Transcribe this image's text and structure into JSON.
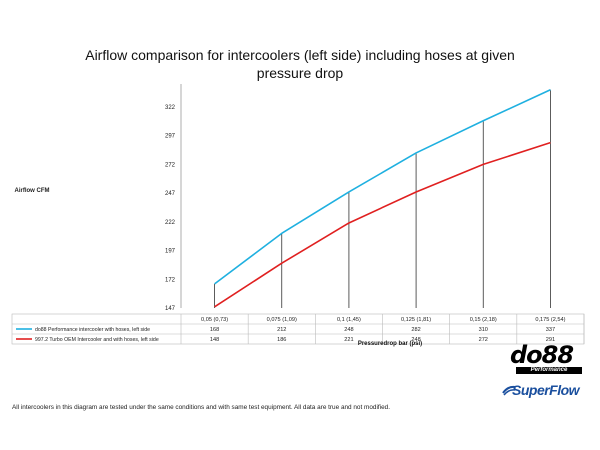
{
  "chart_data": {
    "type": "line",
    "title": "Airflow comparison for intercoolers (left side) including hoses at given pressure drop",
    "ylabel": "Airflow CFM",
    "xlabel": "Pressuredrop bar (psi)",
    "ylim": [
      147,
      342
    ],
    "yticks": [
      147,
      172,
      197,
      222,
      247,
      272,
      297,
      322
    ],
    "categories": [
      "0,05 (0,73)",
      "0,075 (1,09)",
      "0,1 (1,45)",
      "0,125 (1,81)",
      "0,15 (2,18)",
      "0,175 (2,54)"
    ],
    "series": [
      {
        "name": "do88 Performance intercooler with hoses, left side",
        "color": "#1fb0e0",
        "values": [
          168,
          212,
          248,
          282,
          310,
          337
        ]
      },
      {
        "name": "997.2 Turbo OEM Intercooler and with hoses, left side",
        "color": "#e02020",
        "values": [
          148,
          186,
          221,
          248,
          272,
          291
        ]
      }
    ],
    "grid": false,
    "legend": "table-below"
  },
  "logos": {
    "do88": "do88",
    "do88_sub": "Performance",
    "superflow": "SuperFlow"
  },
  "footer": "All intercoolers in this diagram are tested under the same conditions and with same test equipment. All data are true and not modified."
}
